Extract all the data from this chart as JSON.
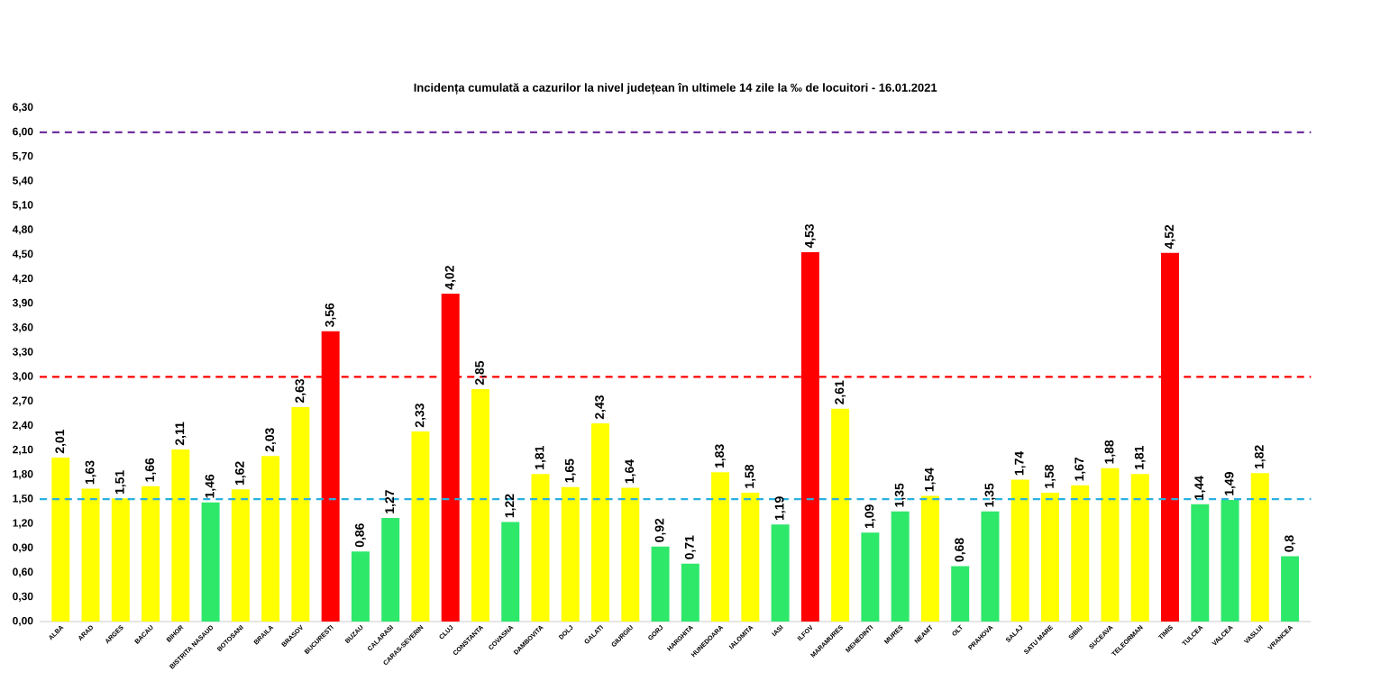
{
  "chart_data": {
    "type": "bar",
    "title": "Incidența cumulată a cazurilor la nivel județean în ultimele 14 zile   la ‰ de locuitori  - 16.01.2021",
    "categories": [
      "ALBA",
      "ARAD",
      "ARGES",
      "BACAU",
      "BIHOR",
      "BISTRITA NASAUD",
      "BOTOSANI",
      "BRAILA",
      "BRASOV",
      "BUCURESTI",
      "BUZAU",
      "CALARASI",
      "CARAS-SEVERIN",
      "CLUJ",
      "CONSTANTA",
      "COVASNA",
      "DAMBOVITA",
      "DOLJ",
      "GALATI",
      "GIURGIU",
      "GORJ",
      "HARGHITA",
      "HUNEDOARA",
      "IALOMITA",
      "IASI",
      "ILFOV",
      "MARAMURES",
      "MEHEDINTI",
      "MURES",
      "NEAMT",
      "OLT",
      "PRAHOVA",
      "SALAJ",
      "SATU MARE",
      "SIBIU",
      "SUCEAVA",
      "TELEORMAN",
      "TIMIS",
      "TULCEA",
      "VALCEA",
      "VASLUI",
      "VRANCEA"
    ],
    "values": [
      2.01,
      1.63,
      1.51,
      1.66,
      2.11,
      1.46,
      1.62,
      2.03,
      2.63,
      3.56,
      0.86,
      1.27,
      2.33,
      4.02,
      2.85,
      1.22,
      1.81,
      1.65,
      2.43,
      1.64,
      0.92,
      0.71,
      1.83,
      1.58,
      1.19,
      4.53,
      2.61,
      1.09,
      1.35,
      1.54,
      0.68,
      1.35,
      1.74,
      1.58,
      1.67,
      1.88,
      1.81,
      4.52,
      1.44,
      1.49,
      1.82,
      0.8
    ],
    "value_labels": [
      "2,01",
      "1,63",
      "1,51",
      "1,66",
      "2,11",
      "1,46",
      "1,62",
      "2,03",
      "2,63",
      "3,56",
      "0,86",
      "1,27",
      "2,33",
      "4,02",
      "2,85",
      "1,22",
      "1,81",
      "1,65",
      "2,43",
      "1,64",
      "0,92",
      "0,71",
      "1,83",
      "1,58",
      "1,19",
      "4,53",
      "2,61",
      "1,09",
      "1,35",
      "1,54",
      "0,68",
      "1,35",
      "1,74",
      "1,58",
      "1,67",
      "1,88",
      "1,81",
      "4,52",
      "1,44",
      "1,49",
      "1,82",
      "0,8"
    ],
    "colors": [
      "#ffff00",
      "#ffff00",
      "#ffff00",
      "#ffff00",
      "#ffff00",
      "#2ee86a",
      "#ffff00",
      "#ffff00",
      "#ffff00",
      "#ff0000",
      "#2ee86a",
      "#2ee86a",
      "#ffff00",
      "#ff0000",
      "#ffff00",
      "#2ee86a",
      "#ffff00",
      "#ffff00",
      "#ffff00",
      "#ffff00",
      "#2ee86a",
      "#2ee86a",
      "#ffff00",
      "#ffff00",
      "#2ee86a",
      "#ff0000",
      "#ffff00",
      "#2ee86a",
      "#2ee86a",
      "#ffff00",
      "#2ee86a",
      "#2ee86a",
      "#ffff00",
      "#ffff00",
      "#ffff00",
      "#ffff00",
      "#ffff00",
      "#ff0000",
      "#2ee86a",
      "#2ee86a",
      "#ffff00",
      "#2ee86a"
    ],
    "ylim": [
      0,
      6.3
    ],
    "yticks": [
      {
        "value": 0,
        "label": "0,00"
      },
      {
        "value": 0.3,
        "label": "0,30"
      },
      {
        "value": 0.6,
        "label": "0,60"
      },
      {
        "value": 0.9,
        "label": "0,90"
      },
      {
        "value": 1.2,
        "label": "1,20"
      },
      {
        "value": 1.5,
        "label": "1,50"
      },
      {
        "value": 1.8,
        "label": "1,80"
      },
      {
        "value": 2.1,
        "label": "2,10"
      },
      {
        "value": 2.4,
        "label": "2,40"
      },
      {
        "value": 2.7,
        "label": "2,70"
      },
      {
        "value": 3.0,
        "label": "3,00"
      },
      {
        "value": 3.3,
        "label": "3,30"
      },
      {
        "value": 3.6,
        "label": "3,60"
      },
      {
        "value": 3.9,
        "label": "3,90"
      },
      {
        "value": 4.2,
        "label": "4,20"
      },
      {
        "value": 4.5,
        "label": "4,50"
      },
      {
        "value": 4.8,
        "label": "4,80"
      },
      {
        "value": 5.1,
        "label": "5,10"
      },
      {
        "value": 5.4,
        "label": "5,40"
      },
      {
        "value": 5.7,
        "label": "5,70"
      },
      {
        "value": 6.0,
        "label": "6,00"
      },
      {
        "value": 6.3,
        "label": "6,30"
      }
    ],
    "ref_lines": [
      {
        "axis": "y",
        "value": 1.5,
        "color": "#2ab0e0",
        "line_style": "dashed"
      },
      {
        "axis": "y",
        "value": 3.0,
        "color": "#ff0000",
        "line_style": "dashed"
      },
      {
        "axis": "y",
        "value": 6.0,
        "color": "#7030a0",
        "line_style": "dashed"
      }
    ],
    "grid": false
  }
}
